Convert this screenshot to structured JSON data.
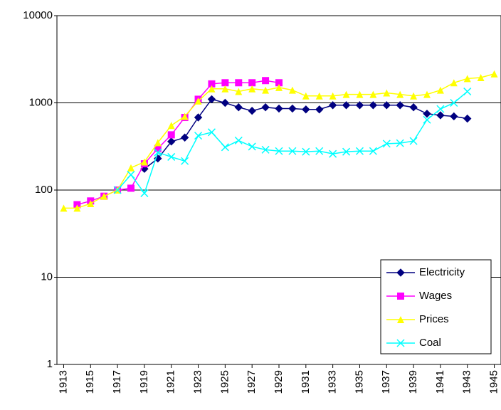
{
  "chart_data": {
    "type": "line",
    "log_y": true,
    "grid": true,
    "legend": "lower right",
    "x": [
      1913,
      1914,
      1915,
      1916,
      1917,
      1918,
      1919,
      1920,
      1921,
      1922,
      1923,
      1924,
      1925,
      1926,
      1927,
      1928,
      1929,
      1930,
      1931,
      1932,
      1933,
      1934,
      1935,
      1936,
      1937,
      1938,
      1939,
      1940,
      1941,
      1942,
      1943,
      1944,
      1945
    ],
    "xlim": [
      1912.5,
      1945.5
    ],
    "xticks": [
      1913,
      1915,
      1917,
      1919,
      1921,
      1923,
      1925,
      1927,
      1929,
      1931,
      1933,
      1935,
      1937,
      1939,
      1941,
      1943,
      1945
    ],
    "ylim": [
      1,
      10000
    ],
    "yticks": [
      1,
      10,
      100,
      1000,
      10000
    ],
    "series": [
      {
        "name": "Electricity",
        "color": "#000080",
        "marker": "diamond",
        "values": [
          null,
          null,
          null,
          null,
          null,
          null,
          175,
          230,
          360,
          400,
          680,
          1100,
          1000,
          890,
          810,
          890,
          860,
          860,
          840,
          840,
          940,
          940,
          940,
          940,
          940,
          940,
          890,
          750,
          720,
          700,
          660,
          null,
          null
        ]
      },
      {
        "name": "Wages",
        "color": "#ff00ff",
        "marker": "square",
        "values": [
          null,
          68,
          75,
          85,
          100,
          105,
          200,
          300,
          430,
          680,
          1100,
          1650,
          1700,
          1700,
          1700,
          1800,
          1700,
          null,
          null,
          null,
          null,
          null,
          null,
          null,
          null,
          null,
          null,
          null,
          null,
          null,
          null,
          null,
          null
        ]
      },
      {
        "name": "Prices",
        "color": "#ffff00",
        "marker": "triangle",
        "values": [
          62,
          62,
          70,
          85,
          100,
          180,
          210,
          350,
          550,
          700,
          1050,
          1450,
          1450,
          1350,
          1450,
          1400,
          1500,
          1400,
          1200,
          1200,
          1200,
          1250,
          1250,
          1250,
          1300,
          1250,
          1200,
          1250,
          1400,
          1700,
          1900,
          1950,
          2150
        ]
      },
      {
        "name": "Coal",
        "color": "#00ffff",
        "marker": "x",
        "values": [
          null,
          null,
          null,
          null,
          100,
          150,
          92,
          270,
          240,
          215,
          420,
          460,
          310,
          370,
          315,
          290,
          280,
          280,
          275,
          280,
          260,
          275,
          280,
          280,
          340,
          345,
          365,
          640,
          850,
          1000,
          1350,
          null,
          null
        ]
      }
    ]
  }
}
